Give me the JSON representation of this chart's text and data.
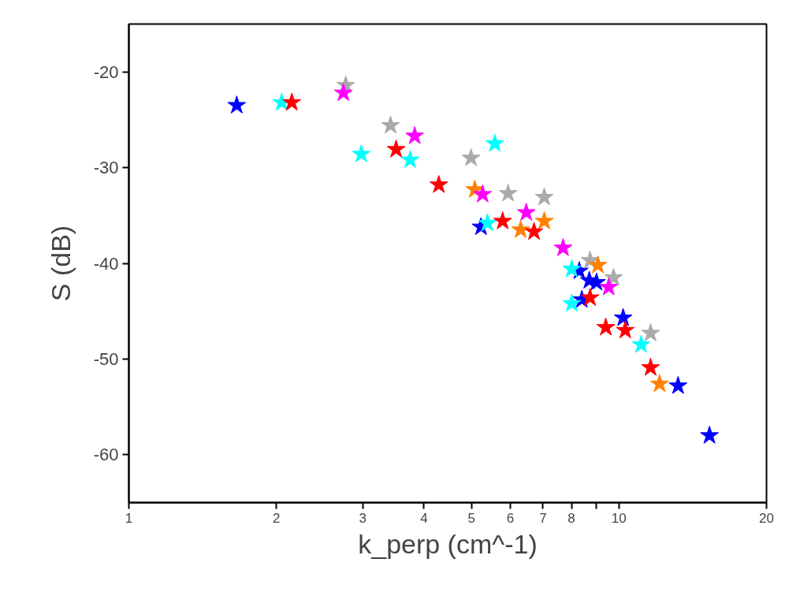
{
  "chart_data": {
    "type": "scatter",
    "xlabel": "k_perp (cm^-1)",
    "ylabel": "S (dB)",
    "log": "x",
    "marker": "star",
    "grid": false,
    "xlim": [
      1,
      20
    ],
    "xticks": [
      1,
      2,
      3,
      4,
      5,
      6,
      7,
      8,
      {
        "value": 9,
        "label": null
      },
      10,
      20
    ],
    "ylim": [
      -65,
      -15
    ],
    "yticks": [
      -20,
      -30,
      -40,
      -50,
      -60
    ],
    "series": [
      {
        "color": "#0000ff",
        "x": [
          1.66,
          5.23,
          8.3,
          8.7,
          9.0,
          8.4,
          10.2,
          13.2,
          15.3
        ],
        "values": [
          -23.5,
          -36.2,
          -40.8,
          -41.8,
          -42.0,
          -43.8,
          -45.7,
          -52.8,
          -58.0
        ]
      },
      {
        "color": "#00ffff",
        "x": [
          2.05,
          2.98,
          3.75,
          5.58,
          5.39,
          8.01,
          8.01,
          11.1
        ],
        "values": [
          -23.2,
          -28.6,
          -29.2,
          -27.5,
          -35.8,
          -40.6,
          -44.2,
          -48.5
        ]
      },
      {
        "color": "#aaaaaa",
        "x": [
          2.77,
          3.42,
          4.99,
          5.94,
          7.04,
          8.73,
          9.75,
          11.6
        ],
        "values": [
          -21.4,
          -25.6,
          -29.0,
          -32.7,
          -33.1,
          -39.7,
          -41.5,
          -47.3
        ]
      },
      {
        "color": "#ff8000",
        "x": [
          5.08,
          6.3,
          7.04,
          9.06,
          12.1
        ],
        "values": [
          -32.3,
          -36.5,
          -35.6,
          -40.2,
          -52.6
        ]
      },
      {
        "color": "#ff00ff",
        "x": [
          2.74,
          3.83,
          5.27,
          6.47,
          7.69,
          9.53
        ],
        "values": [
          -22.2,
          -26.7,
          -32.8,
          -34.7,
          -38.4,
          -42.5
        ]
      },
      {
        "color": "#ff0000",
        "x": [
          2.15,
          3.51,
          4.29,
          5.79,
          6.71,
          8.73,
          9.4,
          10.3,
          11.6
        ],
        "values": [
          -23.2,
          -28.1,
          -31.8,
          -35.6,
          -36.7,
          -43.6,
          -46.7,
          -47.0,
          -50.9
        ]
      }
    ]
  }
}
